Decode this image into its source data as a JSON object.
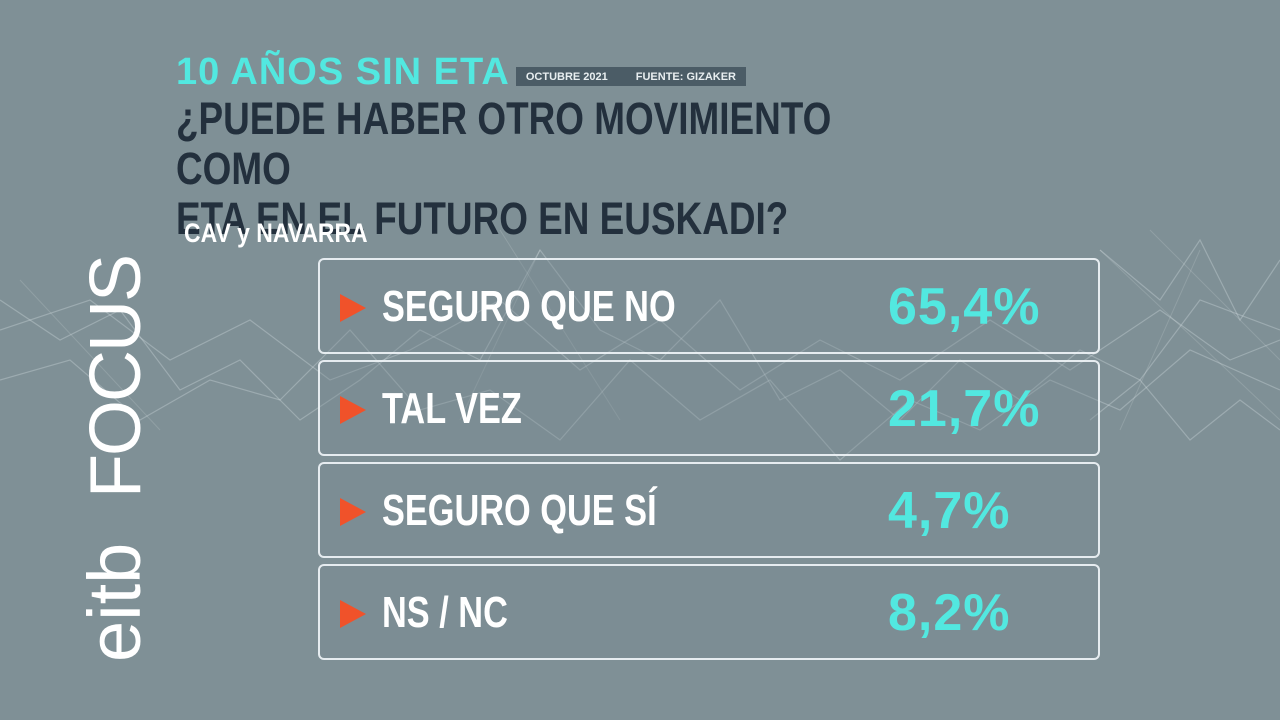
{
  "header": {
    "kicker": "10 AÑOS SIN ETA",
    "date": "OCTUBRE 2021",
    "source": "FUENTE: GIZAKER",
    "question_line1": "¿PUEDE HABER OTRO MOVIMIENTO COMO",
    "question_line2": "ETA EN EL FUTURO EN EUSKADI?",
    "scope": "CAV y NAVARRA"
  },
  "results": [
    {
      "label": "SEGURO QUE NO",
      "value": "65,4%"
    },
    {
      "label": "TAL VEZ",
      "value": "21,7%"
    },
    {
      "label": "SEGURO QUE SÍ",
      "value": "4,7%"
    },
    {
      "label": "NS / NC",
      "value": "8,2%"
    }
  ],
  "logo": {
    "icon": "eitb-focus-logo"
  },
  "colors": {
    "background": "#7f9096",
    "accent_cyan": "#52e8e0",
    "question_text": "#23303d",
    "arrow_orange": "#f0522a",
    "tag_background": "#4b5c66"
  }
}
